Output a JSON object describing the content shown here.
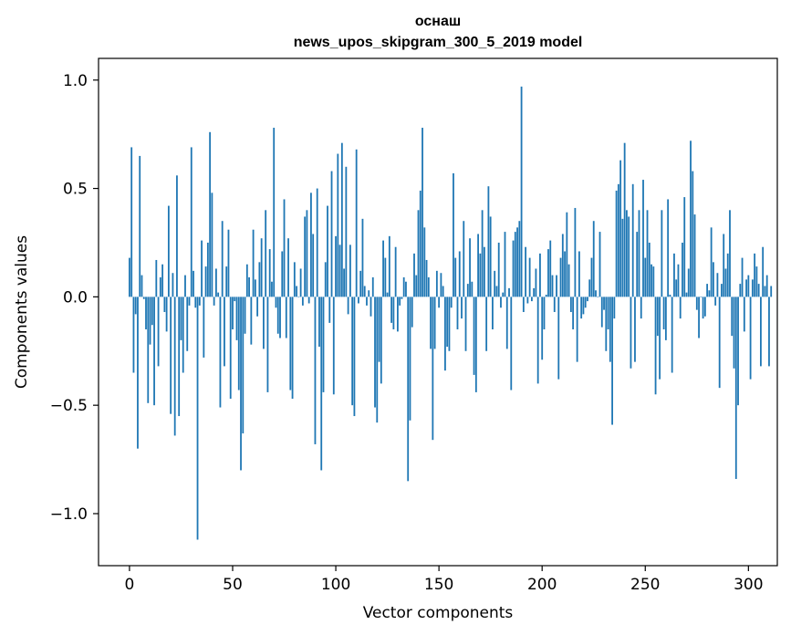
{
  "chart_data": {
    "type": "bar",
    "title": "оснаш",
    "subtitle": "news_upos_skipgram_300_5_2019 model",
    "xlabel": "Vector components",
    "ylabel": "Components values",
    "xlim": [
      -15,
      314
    ],
    "ylim": [
      -1.24,
      1.1
    ],
    "xticks": [
      0,
      50,
      100,
      150,
      200,
      250,
      300
    ],
    "xtick_labels": [
      "0",
      "50",
      "100",
      "150",
      "200",
      "250",
      "300"
    ],
    "yticks": [
      -1.0,
      -0.5,
      0.0,
      0.5,
      1.0
    ],
    "ytick_labels": [
      "−1.0",
      "−0.5",
      "0.0",
      "0.5",
      "1.0"
    ],
    "bar_color": "#1f77b4",
    "grid": false,
    "legend": false,
    "values": [
      0.18,
      0.69,
      -0.35,
      -0.08,
      -0.7,
      0.65,
      0.1,
      -0.01,
      -0.15,
      -0.49,
      -0.22,
      -0.13,
      -0.5,
      0.17,
      -0.32,
      0.09,
      0.15,
      -0.07,
      -0.16,
      0.42,
      -0.54,
      0.11,
      -0.64,
      0.56,
      -0.55,
      -0.2,
      -0.35,
      0.1,
      -0.25,
      -0.04,
      0.69,
      0.12,
      -0.05,
      -1.12,
      -0.04,
      0.26,
      -0.28,
      0.14,
      0.25,
      0.76,
      0.48,
      -0.04,
      0.13,
      0.02,
      -0.51,
      0.35,
      -0.32,
      0.14,
      0.31,
      -0.47,
      -0.15,
      -0.02,
      -0.2,
      -0.43,
      -0.8,
      -0.63,
      -0.17,
      0.15,
      0.09,
      -0.22,
      0.31,
      0.08,
      -0.09,
      0.16,
      0.27,
      -0.24,
      0.4,
      -0.44,
      0.22,
      0.07,
      0.78,
      -0.05,
      -0.17,
      -0.19,
      0.21,
      0.45,
      -0.19,
      0.27,
      -0.43,
      -0.47,
      0.16,
      0.05,
      0.0,
      0.13,
      -0.04,
      0.37,
      0.4,
      -0.03,
      0.48,
      0.29,
      -0.68,
      0.5,
      -0.23,
      -0.8,
      -0.44,
      0.16,
      0.42,
      -0.12,
      0.58,
      -0.45,
      0.28,
      0.66,
      0.24,
      0.71,
      0.13,
      0.6,
      -0.08,
      0.24,
      -0.5,
      -0.55,
      0.68,
      -0.03,
      0.12,
      0.36,
      0.05,
      -0.04,
      0.03,
      -0.09,
      0.09,
      -0.51,
      -0.58,
      -0.3,
      -0.4,
      0.26,
      0.18,
      0.02,
      0.28,
      -0.12,
      -0.15,
      0.23,
      -0.16,
      -0.04,
      -0.01,
      0.09,
      0.07,
      -0.85,
      -0.57,
      -0.14,
      0.2,
      0.1,
      0.4,
      0.49,
      0.78,
      0.32,
      0.17,
      0.09,
      -0.24,
      -0.66,
      -0.24,
      0.12,
      -0.05,
      0.11,
      0.05,
      -0.34,
      -0.23,
      -0.25,
      -0.05,
      0.57,
      0.18,
      -0.15,
      0.21,
      -0.1,
      0.35,
      -0.25,
      0.06,
      0.27,
      0.07,
      -0.36,
      -0.44,
      0.29,
      0.2,
      0.4,
      0.23,
      -0.25,
      0.51,
      0.37,
      -0.15,
      0.12,
      0.05,
      0.25,
      -0.05,
      0.02,
      0.3,
      -0.24,
      0.04,
      -0.43,
      0.26,
      0.3,
      0.32,
      0.35,
      0.97,
      -0.07,
      0.23,
      -0.03,
      0.18,
      -0.02,
      0.04,
      0.13,
      -0.4,
      0.2,
      -0.29,
      -0.15,
      0.01,
      0.22,
      0.26,
      0.1,
      -0.07,
      0.1,
      -0.38,
      0.18,
      0.29,
      0.21,
      0.39,
      0.15,
      -0.07,
      -0.15,
      0.41,
      -0.3,
      0.21,
      -0.1,
      -0.08,
      -0.05,
      -0.02,
      0.08,
      0.18,
      0.35,
      0.03,
      0.0,
      0.3,
      -0.14,
      -0.06,
      -0.25,
      -0.15,
      -0.3,
      -0.59,
      -0.1,
      0.49,
      0.52,
      0.63,
      0.36,
      0.71,
      0.4,
      0.37,
      -0.33,
      0.52,
      -0.3,
      0.3,
      0.4,
      -0.1,
      0.54,
      0.18,
      0.4,
      0.25,
      0.15,
      0.14,
      -0.45,
      -0.18,
      -0.38,
      0.4,
      -0.15,
      -0.2,
      0.45,
      0.01,
      -0.35,
      0.2,
      0.08,
      0.15,
      -0.1,
      0.25,
      0.46,
      0.02,
      0.13,
      0.72,
      0.58,
      0.38,
      -0.06,
      -0.19,
      0.0,
      -0.1,
      -0.09,
      0.06,
      0.03,
      0.32,
      0.16,
      -0.04,
      0.11,
      -0.42,
      0.06,
      0.29,
      0.13,
      0.2,
      0.4,
      -0.18,
      -0.33,
      -0.84,
      -0.5,
      0.06,
      0.18,
      -0.16,
      0.08,
      0.1,
      -0.38,
      0.08,
      0.2,
      0.14,
      0.06,
      -0.32,
      0.23,
      0.05,
      0.1,
      -0.32,
      0.05
    ]
  }
}
